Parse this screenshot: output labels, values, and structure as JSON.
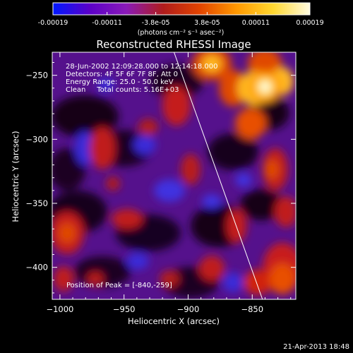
{
  "colorbar": {
    "ticks": [
      "-0.00019",
      "-0.00011",
      "-3.8e-05",
      "3.8e-05",
      "0.00011",
      "0.00019"
    ],
    "tick_values": [
      -0.00019,
      -0.00011,
      -3.8e-05,
      3.8e-05,
      0.00011,
      0.00019
    ],
    "range": [
      -0.00019,
      0.00019
    ],
    "units_label": "(photons cm⁻² s⁻¹ asec⁻²)",
    "colors": [
      "#0018ff",
      "#5b00c8",
      "#8a1ab8",
      "#b01c1c",
      "#e24400",
      "#ff9800",
      "#ffd830",
      "#fffbe0"
    ]
  },
  "title": "Reconstructed RHESSI Image",
  "info": {
    "time_range": "28-Jun-2002 12:09:28.000 to 12:14:18.000",
    "detectors": "Detectors: 4F 5F 6F 7F 8F, Att 0",
    "energy_range": "Energy Range: 25.0 - 50.0 keV",
    "clean_counts": "Clean     Total counts: 5.16E+03",
    "peak_position": "Position of Peak = [-840,-259]"
  },
  "axes": {
    "xlabel": "Heliocentric X (arcsec)",
    "ylabel": "Heliocentric Y (arcsec)",
    "x_ticks": [
      {
        "value": -1000,
        "label": "−1000"
      },
      {
        "value": -950,
        "label": "−950"
      },
      {
        "value": -900,
        "label": "−900"
      },
      {
        "value": -850,
        "label": "−850"
      }
    ],
    "y_ticks": [
      {
        "value": -250,
        "label": "−250"
      },
      {
        "value": -300,
        "label": "−300"
      },
      {
        "value": -350,
        "label": "−350"
      },
      {
        "value": -400,
        "label": "−400"
      }
    ],
    "xlim": [
      -1006,
      -816
    ],
    "ylim": [
      -425,
      -232
    ]
  },
  "limb_line": [
    [
      -911,
      -232
    ],
    [
      -842,
      -425
    ]
  ],
  "peak": {
    "x": -840,
    "y": -259
  },
  "footer_date": "21-Apr-2013 18:48"
}
